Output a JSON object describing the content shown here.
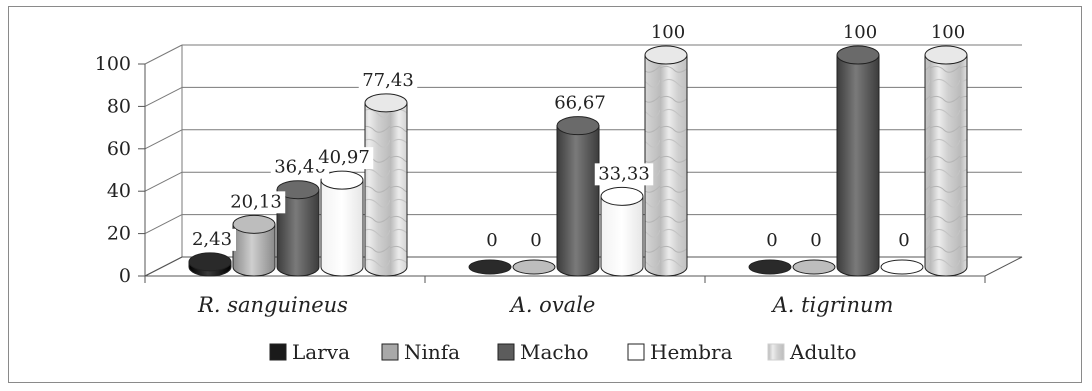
{
  "chart_data": {
    "type": "bar",
    "categories": [
      "R. sanguineus",
      "A. ovale",
      "A. tigrinum"
    ],
    "series": [
      {
        "name": "Larva",
        "values": [
          2.43,
          0,
          0
        ],
        "labels": [
          "2,43",
          "0",
          "0"
        ],
        "color": "#1a1a1a"
      },
      {
        "name": "Ninfa",
        "values": [
          20.13,
          0,
          0
        ],
        "labels": [
          "20,13",
          "0",
          "0"
        ],
        "color": "#a8a8a8"
      },
      {
        "name": "Macho",
        "values": [
          36.46,
          66.67,
          100
        ],
        "labels": [
          "36,46",
          "66,67",
          "100"
        ],
        "color": "#5c5c5c"
      },
      {
        "name": "Hembra",
        "values": [
          40.97,
          33.33,
          0
        ],
        "labels": [
          "40,97",
          "33,33",
          "0"
        ],
        "color": "#ffffff"
      },
      {
        "name": "Adulto",
        "values": [
          77.43,
          100,
          100
        ],
        "labels": [
          "77,43",
          "100",
          "100"
        ],
        "color": "#dcdcdc"
      }
    ],
    "yticks": [
      "0",
      "20",
      "40",
      "60",
      "80",
      "100"
    ],
    "ylim": [
      0,
      100
    ],
    "legend_position": "bottom",
    "grid": true
  }
}
